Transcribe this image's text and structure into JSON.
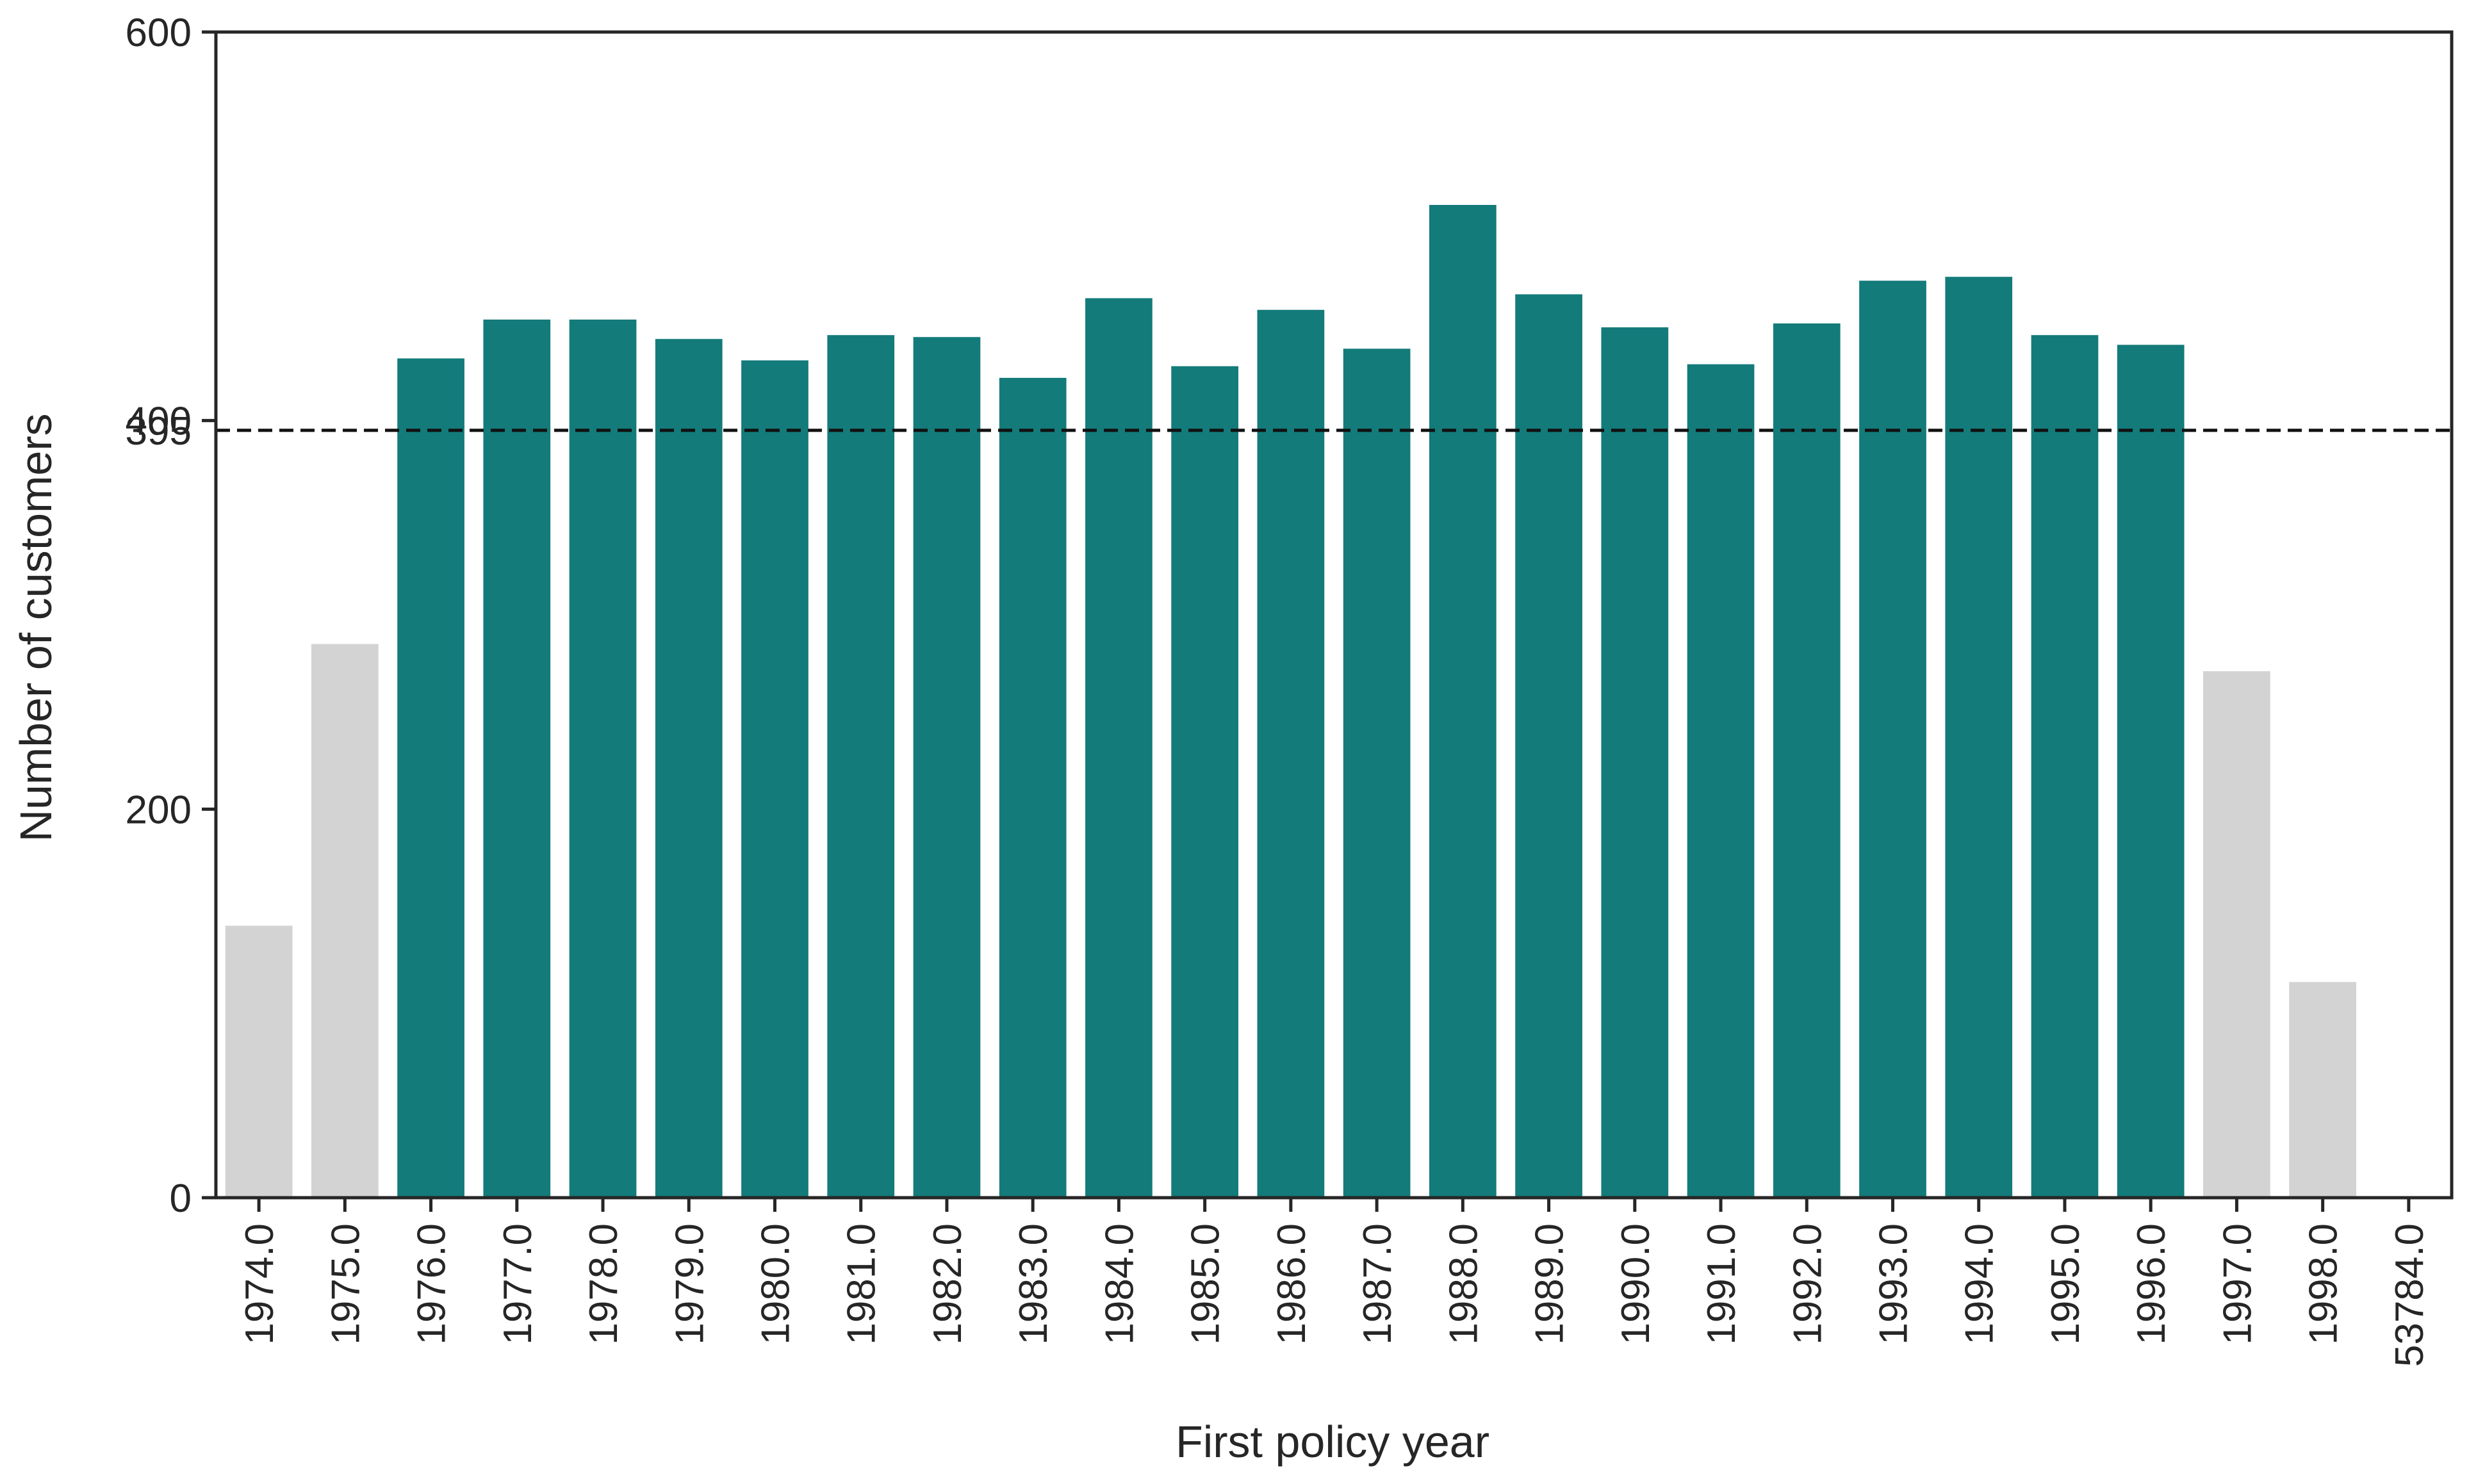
{
  "chart_data": {
    "type": "bar",
    "title": "",
    "xlabel": "First policy year",
    "ylabel": "Number of customers",
    "categories": [
      "1974.0",
      "1975.0",
      "1976.0",
      "1977.0",
      "1978.0",
      "1979.0",
      "1980.0",
      "1981.0",
      "1982.0",
      "1983.0",
      "1984.0",
      "1985.0",
      "1986.0",
      "1987.0",
      "1988.0",
      "1989.0",
      "1990.0",
      "1991.0",
      "1992.0",
      "1993.0",
      "1994.0",
      "1995.0",
      "1996.0",
      "1997.0",
      "1998.0",
      "53784.0"
    ],
    "values": [
      140,
      285,
      432,
      452,
      452,
      442,
      431,
      444,
      443,
      422,
      463,
      428,
      457,
      437,
      511,
      465,
      448,
      429,
      450,
      472,
      474,
      444,
      439,
      271,
      111,
      0
    ],
    "highlighted": [
      false,
      false,
      true,
      true,
      true,
      true,
      true,
      true,
      true,
      true,
      true,
      true,
      true,
      true,
      true,
      true,
      true,
      true,
      true,
      true,
      true,
      true,
      true,
      false,
      false,
      false
    ],
    "colors": {
      "highlight": "#137b7a",
      "muted": "#d3d3d3",
      "reference_line": "#111111",
      "axis": "#262626"
    },
    "ylim": [
      0,
      600
    ],
    "yticks": [
      0,
      200,
      400,
      600
    ],
    "reference_line": {
      "value": 395,
      "label": "395",
      "style": "dashed"
    },
    "grid": false,
    "legend": "none"
  }
}
